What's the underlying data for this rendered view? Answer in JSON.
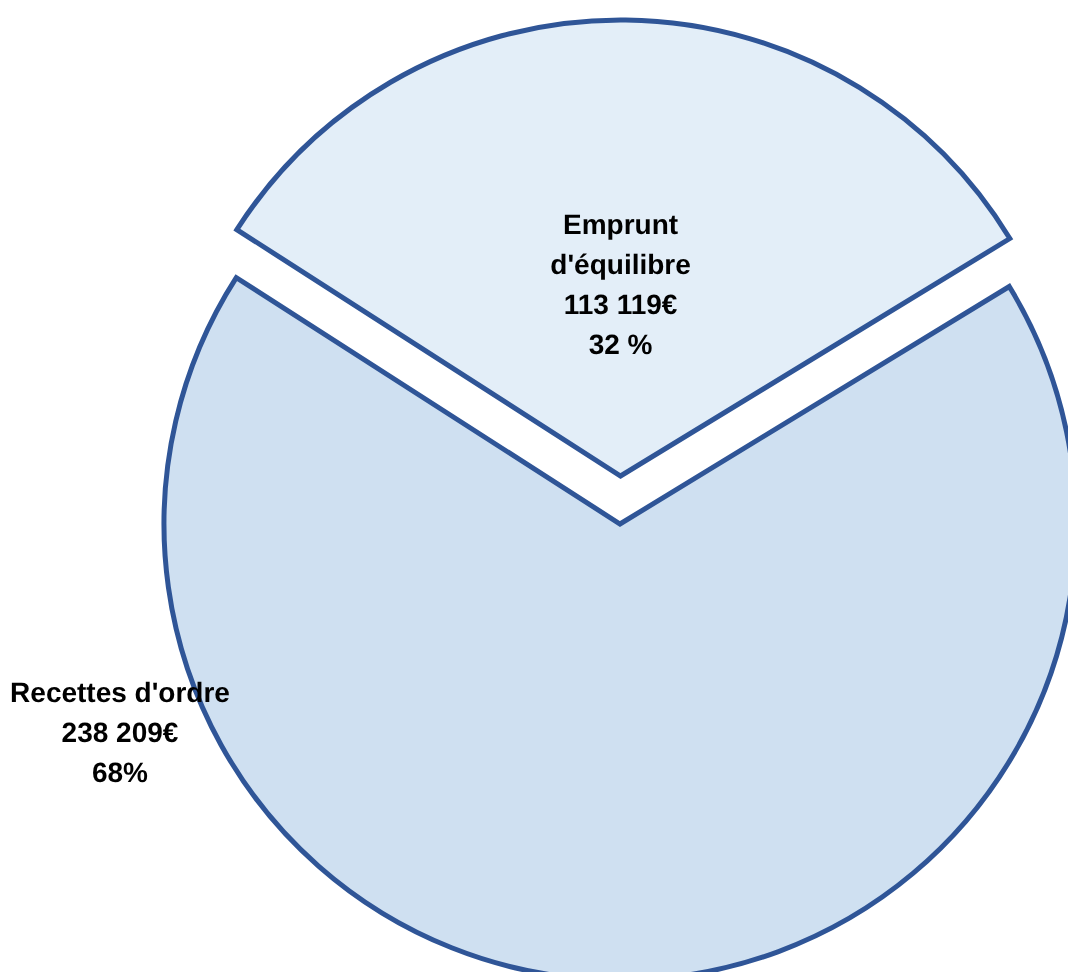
{
  "chart_data": {
    "type": "pie",
    "categories": [
      "Emprunt d'équilibre",
      "Recettes d'ordre"
    ],
    "values": [
      113119,
      238209
    ],
    "value_labels": [
      "113 119€\n32 %",
      "238 209€\n68%"
    ],
    "colors": [
      "#e3eef8",
      "#cfe0f1"
    ]
  }
}
